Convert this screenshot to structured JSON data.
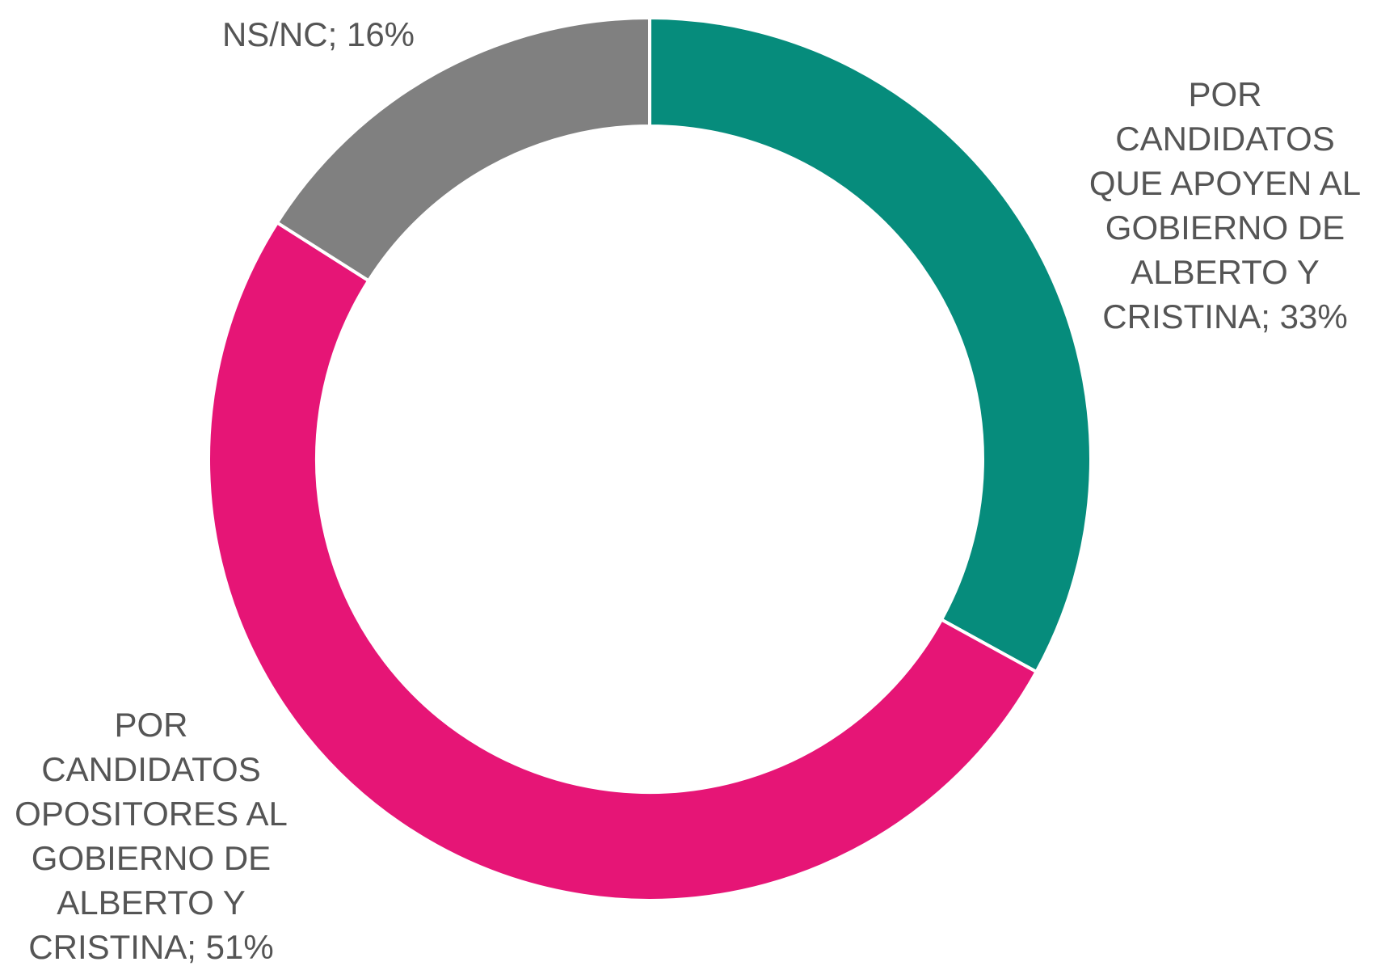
{
  "chart_data": {
    "type": "pie",
    "donut": true,
    "values": [
      33,
      51,
      16
    ],
    "colors": [
      "#068c7c",
      "#e61576",
      "#808080"
    ],
    "value_labels": [
      [
        "POR",
        "CANDIDATOS",
        "QUE APOYEN AL",
        "GOBIERNO DE",
        "ALBERTO Y",
        "CRISTINA; 33%"
      ],
      [
        "POR",
        "CANDIDATOS",
        "OPOSITORES AL",
        "GOBIERNO DE",
        "ALBERTO Y",
        "CRISTINA; 51%"
      ],
      [
        "NS/NC; 16%"
      ]
    ]
  }
}
